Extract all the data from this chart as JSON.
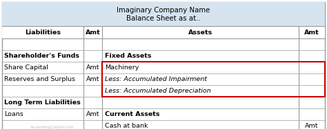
{
  "title_line1": "Imaginary Company Name",
  "title_line2": "Balance Sheet as at..",
  "title_bg": "#d6e4f0",
  "col_headers": [
    "Liabilities",
    "Amt",
    "Assets",
    "Amt"
  ],
  "rows": [
    {
      "left_label": "",
      "left_amt": "",
      "right_label": "",
      "right_amt": "",
      "left_bold": false,
      "right_bold": false,
      "right_red_box": false,
      "right_italic": false
    },
    {
      "left_label": "Shareholder's Funds",
      "left_amt": "",
      "right_label": "Fixed Assets",
      "right_amt": "",
      "left_bold": true,
      "right_bold": true,
      "right_red_box": false,
      "right_italic": false
    },
    {
      "left_label": "Share Capital",
      "left_amt": "Amt",
      "right_label": "Machinery",
      "right_amt": "",
      "left_bold": false,
      "right_bold": false,
      "right_red_box": true,
      "right_italic": false
    },
    {
      "left_label": "Reserves and Surplus",
      "left_amt": "Amt",
      "right_label": "Less: Accumulated Impairment",
      "right_amt": "",
      "left_bold": false,
      "right_bold": false,
      "right_red_box": true,
      "right_italic": true
    },
    {
      "left_label": "",
      "left_amt": "",
      "right_label": "Less: Accumulated Depreciation",
      "right_amt": "",
      "left_bold": false,
      "right_bold": false,
      "right_red_box": true,
      "right_italic": true
    },
    {
      "left_label": "Long Term Liabilities",
      "left_amt": "",
      "right_label": "",
      "right_amt": "",
      "left_bold": true,
      "right_bold": false,
      "right_red_box": false,
      "right_italic": false
    },
    {
      "left_label": "Loans",
      "left_amt": "Amt",
      "right_label": "Current Assets",
      "right_amt": "",
      "left_bold": false,
      "right_bold": true,
      "right_red_box": false,
      "right_italic": false
    },
    {
      "left_label": "",
      "left_amt": "",
      "right_label": "Cash at bank",
      "right_amt": "Amt",
      "left_bold": false,
      "right_bold": false,
      "right_red_box": false,
      "right_italic": false
    }
  ],
  "watermark": "AccountingCapital.com",
  "border_color": "#999999",
  "red_box_color": "#cc0000",
  "font_size": 6.8
}
